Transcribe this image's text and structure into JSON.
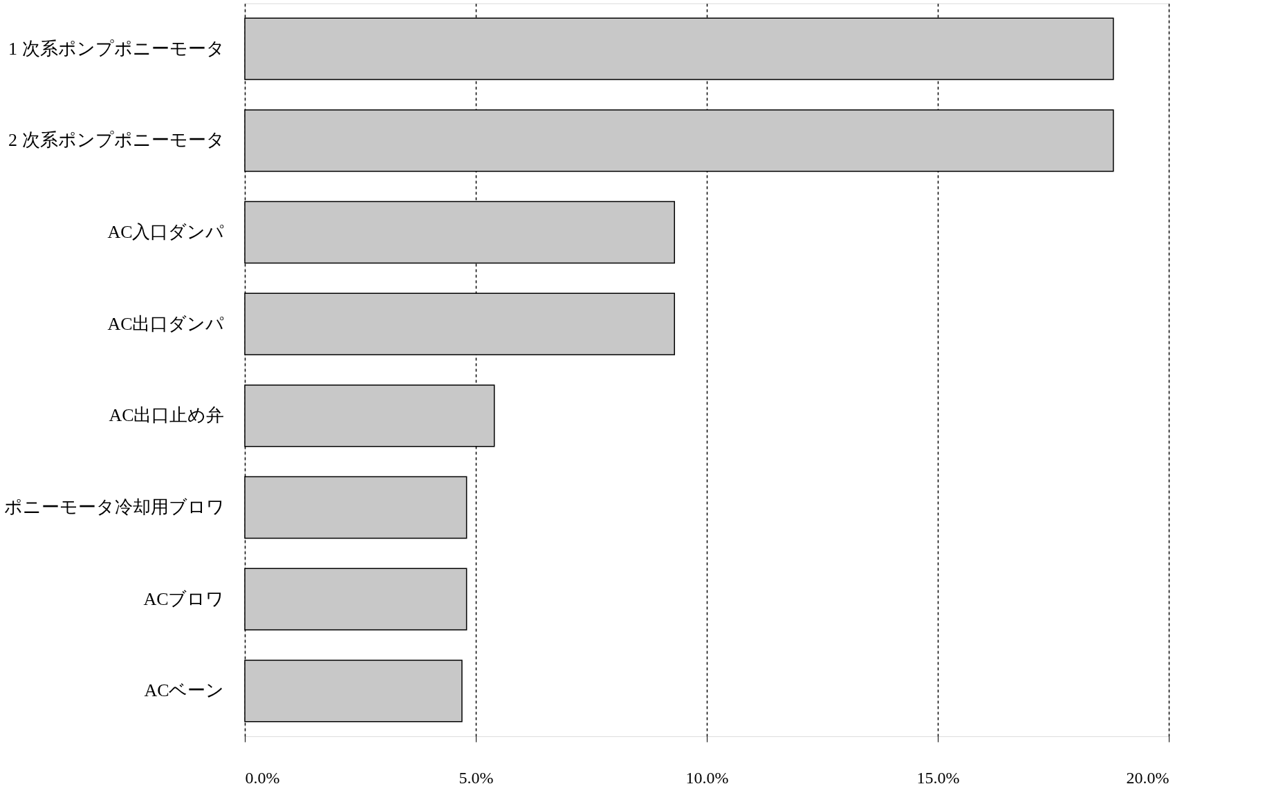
{
  "chart_data": {
    "type": "bar",
    "orientation": "horizontal",
    "categories": [
      "1 次系ポンプポニーモータ",
      "2 次系ポンプポニーモータ",
      "AC入口ダンパ",
      "AC出口ダンパ",
      "AC出口止め弁",
      "ポニーモータ冷却用ブロワ",
      "ACブロワ",
      "ACベーン"
    ],
    "values": [
      18.8,
      18.8,
      9.3,
      9.3,
      5.4,
      4.8,
      4.8,
      4.7
    ],
    "color": "#c8c8c8",
    "xlim": [
      0,
      20
    ],
    "xticks": [
      {
        "value": 0,
        "label": "0.0%"
      },
      {
        "value": 5,
        "label": "5.0%"
      },
      {
        "value": 10,
        "label": "10.0%"
      },
      {
        "value": 15,
        "label": "15.0%"
      },
      {
        "value": 20,
        "label": "20.0%"
      }
    ],
    "grid": "x"
  }
}
